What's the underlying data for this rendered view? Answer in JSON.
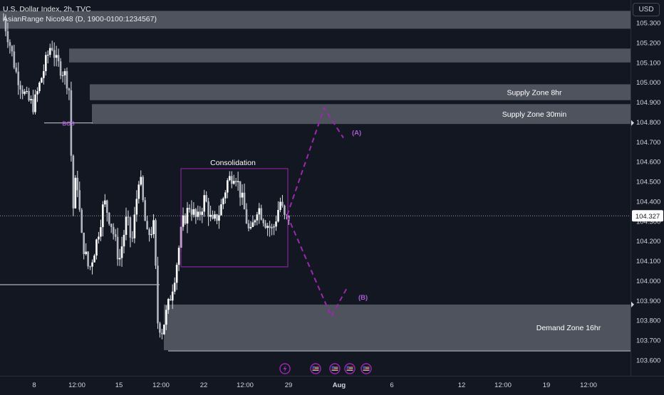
{
  "header": {
    "title": "U.S. Dollar Index, 2h, TVC",
    "indicator": "AsianRange Nico948 (D, 1900-0100:1234567)",
    "currency": "USD"
  },
  "colors": {
    "background": "#131722",
    "zone": "#5d606b",
    "annotation": "#9c27b0",
    "annotation_text": "#a95bd4",
    "candle": "#e0e3eb",
    "axis_text": "#d1d4dc"
  },
  "chart_data": {
    "type": "candlestick",
    "symbol": "U.S. Dollar Index",
    "timeframe": "2h",
    "ylim": [
      103.6,
      105.37
    ],
    "y_ticks": [
      {
        "label": "105.300",
        "value": 105.3
      },
      {
        "label": "105.200",
        "value": 105.2
      },
      {
        "label": "105.100",
        "value": 105.1
      },
      {
        "label": "105.000",
        "value": 105.0
      },
      {
        "label": "104.900",
        "value": 104.9
      },
      {
        "label": "104.800",
        "value": 104.8
      },
      {
        "label": "104.700",
        "value": 104.7
      },
      {
        "label": "104.600",
        "value": 104.6
      },
      {
        "label": "104.500",
        "value": 104.5
      },
      {
        "label": "104.400",
        "value": 104.4
      },
      {
        "label": "104.300",
        "value": 104.3
      },
      {
        "label": "104.200",
        "value": 104.2
      },
      {
        "label": "104.100",
        "value": 104.1
      },
      {
        "label": "104.000",
        "value": 104.0
      },
      {
        "label": "103.900",
        "value": 103.9
      },
      {
        "label": "103.800",
        "value": 103.8
      },
      {
        "label": "103.700",
        "value": 103.7
      },
      {
        "label": "103.600",
        "value": 103.6
      }
    ],
    "x_ticks": [
      {
        "label": "8",
        "t": 0
      },
      {
        "label": "12:00",
        "t": 1
      },
      {
        "label": "15",
        "t": 2
      },
      {
        "label": "12:00",
        "t": 3
      },
      {
        "label": "22",
        "t": 4
      },
      {
        "label": "12:00",
        "t": 5
      },
      {
        "label": "29",
        "t": 6
      },
      {
        "label": "Aug",
        "t": 7
      },
      {
        "label": "6",
        "t": 8
      },
      {
        "label": "12",
        "t": 9
      },
      {
        "label": "12:00",
        "t": 10
      },
      {
        "label": "19",
        "t": 11
      },
      {
        "label": "12:00",
        "t": 12
      }
    ],
    "x_tick_positions": [
      48,
      108,
      167,
      226,
      286,
      344,
      405,
      476,
      550,
      648,
      706,
      767,
      826
    ],
    "last_price": {
      "label": "104.327",
      "value": 104.327
    },
    "price_path": [
      [
        0,
        105.32
      ],
      [
        0.1,
        105.22
      ],
      [
        0.25,
        105.05
      ],
      [
        0.45,
        104.92
      ],
      [
        0.6,
        104.88
      ],
      [
        0.75,
        105.02
      ],
      [
        0.95,
        105.2
      ],
      [
        1.05,
        105.1
      ],
      [
        1.2,
        105.05
      ],
      [
        1.3,
        104.98
      ],
      [
        1.38,
        104.35
      ],
      [
        1.45,
        104.55
      ],
      [
        1.55,
        104.22
      ],
      [
        1.7,
        104.05
      ],
      [
        1.85,
        104.2
      ],
      [
        2.0,
        104.4
      ],
      [
        2.15,
        104.28
      ],
      [
        2.3,
        104.1
      ],
      [
        2.45,
        104.32
      ],
      [
        2.55,
        104.18
      ],
      [
        2.7,
        104.55
      ],
      [
        2.85,
        104.22
      ],
      [
        3.0,
        104.28
      ],
      [
        3.05,
        103.8
      ],
      [
        3.15,
        103.75
      ],
      [
        3.3,
        103.9
      ],
      [
        3.42,
        104.05
      ],
      [
        3.55,
        104.28
      ],
      [
        3.7,
        104.38
      ],
      [
        3.85,
        104.3
      ],
      [
        4.0,
        104.42
      ],
      [
        4.15,
        104.28
      ],
      [
        4.3,
        104.35
      ],
      [
        4.45,
        104.5
      ],
      [
        4.6,
        104.55
      ],
      [
        4.75,
        104.4
      ],
      [
        4.9,
        104.22
      ],
      [
        5.05,
        104.38
      ],
      [
        5.2,
        104.3
      ],
      [
        5.35,
        104.25
      ],
      [
        5.5,
        104.4
      ],
      [
        5.6,
        104.3
      ],
      [
        5.7,
        104.33
      ]
    ],
    "zones": [
      {
        "label": "",
        "top": 105.36,
        "bottom": 105.27
      },
      {
        "label": "",
        "top": 105.17,
        "bottom": 105.1
      },
      {
        "label": "Supply Zone 8hr",
        "top": 104.99,
        "bottom": 104.91
      },
      {
        "label": "Supply Zone 30min",
        "top": 104.89,
        "bottom": 104.79
      },
      {
        "label": "Demand Zone 16hr",
        "top": 103.88,
        "bottom": 103.65
      }
    ],
    "annotations": {
      "bos": {
        "label": "BOS",
        "value": 104.795
      },
      "consolidation": {
        "label": "Consolidation",
        "top": 104.565,
        "bottom": 104.07
      },
      "scenario_a": {
        "label": "(A)",
        "path": [
          [
            104.33
          ],
          [
            104.87
          ],
          [
            104.72
          ]
        ]
      },
      "scenario_b": {
        "label": "(B)",
        "path": [
          [
            104.33
          ],
          [
            103.82
          ],
          [
            103.97
          ]
        ]
      },
      "support_line": {
        "value": 103.98
      }
    }
  }
}
